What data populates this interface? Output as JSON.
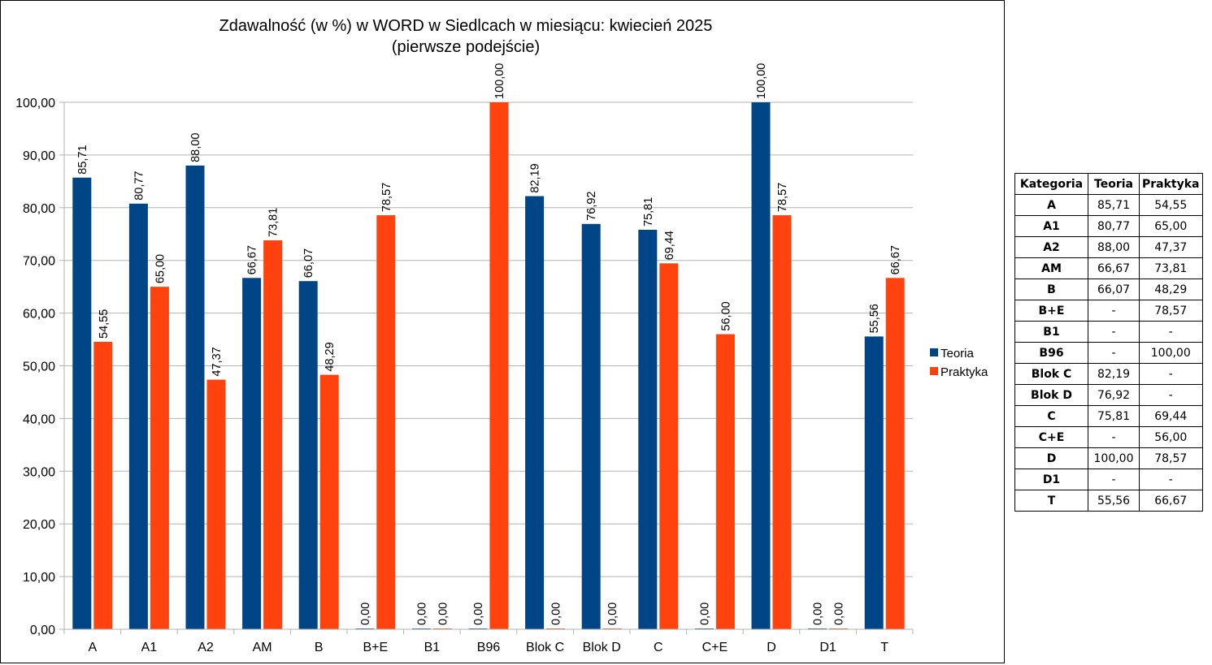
{
  "chart_data": {
    "type": "bar",
    "title_lines": [
      "Zdawalność (w %) w WORD w Siedlcach w miesiącu: kwiecień 2025",
      "(pierwsze podejście)"
    ],
    "categories": [
      "A",
      "A1",
      "A2",
      "AM",
      "B",
      "B+E",
      "B1",
      "B96",
      "Blok C",
      "Blok D",
      "C",
      "C+E",
      "D",
      "D1",
      "T"
    ],
    "series": [
      {
        "name": "Teoria",
        "color": "#004586",
        "values": [
          85.71,
          80.77,
          88.0,
          66.67,
          66.07,
          0,
          0,
          0,
          82.19,
          76.92,
          75.81,
          0,
          100.0,
          0,
          55.56
        ],
        "labels": [
          "85,71",
          "80,77",
          "88,00",
          "66,67",
          "66,07",
          "0,00",
          "0,00",
          "0,00",
          "82,19",
          "76,92",
          "75,81",
          "0,00",
          "100,00",
          "0,00",
          "55,56"
        ]
      },
      {
        "name": "Praktyka",
        "color": "#ff420e",
        "values": [
          54.55,
          65.0,
          47.37,
          73.81,
          48.29,
          78.57,
          0,
          100.0,
          0,
          0,
          69.44,
          56.0,
          78.57,
          0,
          66.67
        ],
        "labels": [
          "54,55",
          "65,00",
          "47,37",
          "73,81",
          "48,29",
          "78,57",
          "0,00",
          "100,00",
          "0,00",
          "0,00",
          "69,44",
          "56,00",
          "78,57",
          "0,00",
          "66,67"
        ]
      }
    ],
    "ylim": [
      0,
      100
    ],
    "yticks": [
      "0,00",
      "10,00",
      "20,00",
      "30,00",
      "40,00",
      "50,00",
      "60,00",
      "70,00",
      "80,00",
      "90,00",
      "100,00"
    ],
    "grid": true,
    "legend_position": "right"
  },
  "table": {
    "headers": [
      "Kategoria",
      "Teoria",
      "Praktyka"
    ],
    "rows": [
      [
        "A",
        "85,71",
        "54,55"
      ],
      [
        "A1",
        "80,77",
        "65,00"
      ],
      [
        "A2",
        "88,00",
        "47,37"
      ],
      [
        "AM",
        "66,67",
        "73,81"
      ],
      [
        "B",
        "66,07",
        "48,29"
      ],
      [
        "B+E",
        "-",
        "78,57"
      ],
      [
        "B1",
        "-",
        "-"
      ],
      [
        "B96",
        "-",
        "100,00"
      ],
      [
        "Blok C",
        "82,19",
        "-"
      ],
      [
        "Blok D",
        "76,92",
        "-"
      ],
      [
        "C",
        "75,81",
        "69,44"
      ],
      [
        "C+E",
        "-",
        "56,00"
      ],
      [
        "D",
        "100,00",
        "78,57"
      ],
      [
        "D1",
        "-",
        "-"
      ],
      [
        "T",
        "55,56",
        "66,67"
      ]
    ]
  }
}
